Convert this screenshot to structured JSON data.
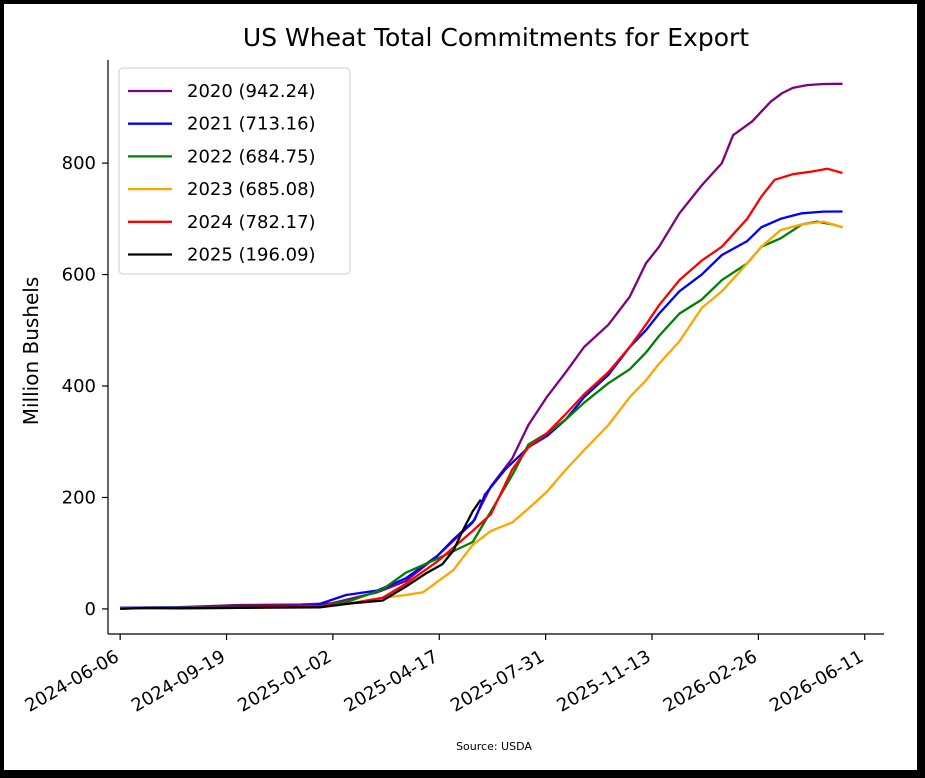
{
  "chart_data": {
    "type": "line",
    "title": "US Wheat Total Commitments for Export",
    "xlabel": "",
    "ylabel": "Million Bushels",
    "source": "Source: USDA",
    "x_ticks": [
      "2024-06-06",
      "2024-09-19",
      "2025-01-02",
      "2025-04-17",
      "2025-07-31",
      "2025-11-13",
      "2026-02-26",
      "2026-06-11"
    ],
    "xlim": [
      "2024-05-25",
      "2026-06-30"
    ],
    "ylim": [
      -45,
      985
    ],
    "y_ticks": [
      0,
      200,
      400,
      600,
      800
    ],
    "grid": false,
    "legend_position": "top-left",
    "series": [
      {
        "name": "2020 (942.24)",
        "color": "#800080",
        "points": [
          [
            "2024-06-06",
            2
          ],
          [
            "2024-08-01",
            3
          ],
          [
            "2024-10-01",
            7
          ],
          [
            "2024-12-01",
            8
          ],
          [
            "2025-01-01",
            10
          ],
          [
            "2025-02-15",
            30
          ],
          [
            "2025-03-15",
            50
          ],
          [
            "2025-04-15",
            95
          ],
          [
            "2025-05-20",
            155
          ],
          [
            "2025-06-07",
            220
          ],
          [
            "2025-06-28",
            270
          ],
          [
            "2025-07-14",
            330
          ],
          [
            "2025-08-01",
            380
          ],
          [
            "2025-08-20",
            425
          ],
          [
            "2025-09-07",
            470
          ],
          [
            "2025-10-01",
            510
          ],
          [
            "2025-10-22",
            560
          ],
          [
            "2025-11-07",
            620
          ],
          [
            "2025-11-20",
            650
          ],
          [
            "2025-12-10",
            710
          ],
          [
            "2026-01-01",
            760
          ],
          [
            "2026-01-21",
            800
          ],
          [
            "2026-02-01",
            850
          ],
          [
            "2026-02-20",
            875
          ],
          [
            "2026-03-10",
            910
          ],
          [
            "2026-03-21",
            925
          ],
          [
            "2026-04-01",
            935
          ],
          [
            "2026-04-15",
            940
          ],
          [
            "2026-05-01",
            942
          ],
          [
            "2026-05-20",
            942.24
          ]
        ]
      },
      {
        "name": "2021 (713.16)",
        "color": "#0000ff",
        "points": [
          [
            "2024-06-06",
            2
          ],
          [
            "2024-09-01",
            3
          ],
          [
            "2024-12-15",
            6
          ],
          [
            "2025-01-15",
            25
          ],
          [
            "2025-02-15",
            33
          ],
          [
            "2025-03-15",
            55
          ],
          [
            "2025-04-15",
            95
          ],
          [
            "2025-05-01",
            125
          ],
          [
            "2025-05-22",
            160
          ],
          [
            "2025-06-01",
            205
          ],
          [
            "2025-06-21",
            250
          ],
          [
            "2025-07-14",
            290
          ],
          [
            "2025-08-01",
            310
          ],
          [
            "2025-08-20",
            340
          ],
          [
            "2025-09-07",
            380
          ],
          [
            "2025-10-01",
            420
          ],
          [
            "2025-10-22",
            470
          ],
          [
            "2025-11-07",
            500
          ],
          [
            "2025-11-20",
            530
          ],
          [
            "2025-12-10",
            570
          ],
          [
            "2026-01-01",
            600
          ],
          [
            "2026-01-21",
            635
          ],
          [
            "2026-02-15",
            660
          ],
          [
            "2026-03-01",
            685
          ],
          [
            "2026-03-20",
            700
          ],
          [
            "2026-04-10",
            710
          ],
          [
            "2026-05-01",
            713
          ],
          [
            "2026-05-20",
            713.16
          ]
        ]
      },
      {
        "name": "2022 (684.75)",
        "color": "#008000",
        "points": [
          [
            "2024-06-06",
            1
          ],
          [
            "2024-10-01",
            3
          ],
          [
            "2024-12-20",
            5
          ],
          [
            "2025-01-20",
            15
          ],
          [
            "2025-02-20",
            35
          ],
          [
            "2025-03-15",
            65
          ],
          [
            "2025-04-15",
            90
          ],
          [
            "2025-05-20",
            120
          ],
          [
            "2025-06-07",
            175
          ],
          [
            "2025-06-28",
            240
          ],
          [
            "2025-07-14",
            295
          ],
          [
            "2025-08-01",
            315
          ],
          [
            "2025-08-20",
            340
          ],
          [
            "2025-09-07",
            370
          ],
          [
            "2025-10-01",
            405
          ],
          [
            "2025-10-22",
            430
          ],
          [
            "2025-11-07",
            460
          ],
          [
            "2025-11-20",
            490
          ],
          [
            "2025-12-10",
            530
          ],
          [
            "2026-01-01",
            555
          ],
          [
            "2026-01-21",
            590
          ],
          [
            "2026-02-15",
            620
          ],
          [
            "2026-03-01",
            650
          ],
          [
            "2026-03-20",
            665
          ],
          [
            "2026-04-10",
            690
          ],
          [
            "2026-04-25",
            695
          ],
          [
            "2026-05-10",
            690
          ],
          [
            "2026-05-20",
            684.75
          ]
        ]
      },
      {
        "name": "2023 (685.08)",
        "color": "#ffa500",
        "points": [
          [
            "2024-06-06",
            1
          ],
          [
            "2024-10-01",
            2
          ],
          [
            "2024-12-20",
            4
          ],
          [
            "2025-01-20",
            10
          ],
          [
            "2025-02-20",
            20
          ],
          [
            "2025-03-15",
            25
          ],
          [
            "2025-04-01",
            30
          ],
          [
            "2025-05-01",
            70
          ],
          [
            "2025-05-20",
            115
          ],
          [
            "2025-06-07",
            140
          ],
          [
            "2025-06-28",
            155
          ],
          [
            "2025-07-14",
            180
          ],
          [
            "2025-08-01",
            210
          ],
          [
            "2025-08-20",
            250
          ],
          [
            "2025-09-07",
            285
          ],
          [
            "2025-10-01",
            330
          ],
          [
            "2025-10-22",
            380
          ],
          [
            "2025-11-07",
            410
          ],
          [
            "2025-11-20",
            440
          ],
          [
            "2025-12-10",
            480
          ],
          [
            "2026-01-01",
            540
          ],
          [
            "2026-01-21",
            570
          ],
          [
            "2026-02-15",
            620
          ],
          [
            "2026-03-01",
            650
          ],
          [
            "2026-03-20",
            680
          ],
          [
            "2026-04-10",
            690
          ],
          [
            "2026-05-01",
            695
          ],
          [
            "2026-05-20",
            685.08
          ]
        ]
      },
      {
        "name": "2024 (782.17)",
        "color": "#ff0000",
        "points": [
          [
            "2024-06-06",
            1
          ],
          [
            "2024-10-01",
            2
          ],
          [
            "2024-12-20",
            5
          ],
          [
            "2025-01-20",
            10
          ],
          [
            "2025-02-20",
            20
          ],
          [
            "2025-03-15",
            45
          ],
          [
            "2025-04-15",
            85
          ],
          [
            "2025-05-20",
            140
          ],
          [
            "2025-06-07",
            170
          ],
          [
            "2025-06-28",
            250
          ],
          [
            "2025-07-14",
            290
          ],
          [
            "2025-08-01",
            315
          ],
          [
            "2025-08-20",
            350
          ],
          [
            "2025-09-07",
            385
          ],
          [
            "2025-10-01",
            425
          ],
          [
            "2025-10-22",
            470
          ],
          [
            "2025-11-07",
            510
          ],
          [
            "2025-11-20",
            545
          ],
          [
            "2025-12-10",
            590
          ],
          [
            "2026-01-01",
            625
          ],
          [
            "2026-01-21",
            650
          ],
          [
            "2026-02-15",
            700
          ],
          [
            "2026-03-01",
            740
          ],
          [
            "2026-03-14",
            770
          ],
          [
            "2026-04-01",
            780
          ],
          [
            "2026-04-20",
            785
          ],
          [
            "2026-05-05",
            790
          ],
          [
            "2026-05-20",
            782.17
          ]
        ]
      },
      {
        "name": "2025 (196.09)",
        "color": "#000000",
        "points": [
          [
            "2024-06-06",
            0
          ],
          [
            "2024-07-01",
            2
          ],
          [
            "2024-08-01",
            1
          ],
          [
            "2024-10-01",
            2
          ],
          [
            "2024-12-20",
            3
          ],
          [
            "2025-01-20",
            10
          ],
          [
            "2025-02-20",
            15
          ],
          [
            "2025-03-15",
            40
          ],
          [
            "2025-04-05",
            65
          ],
          [
            "2025-04-20",
            80
          ],
          [
            "2025-05-01",
            105
          ],
          [
            "2025-05-10",
            140
          ],
          [
            "2025-05-20",
            175
          ],
          [
            "2025-05-28",
            196.09
          ]
        ]
      }
    ]
  }
}
